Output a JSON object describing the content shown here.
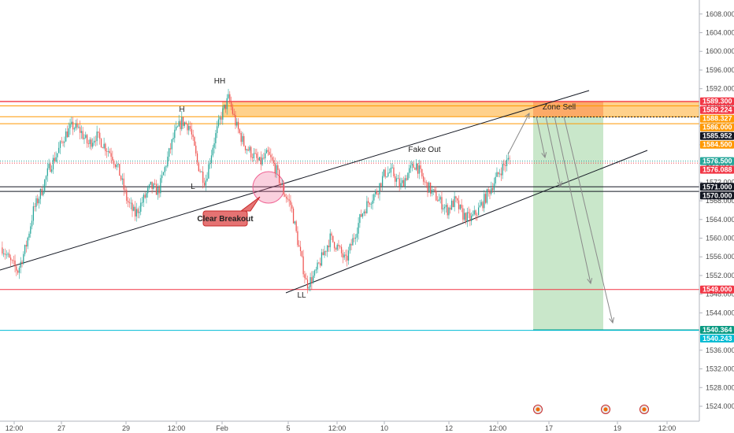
{
  "chart_data": {
    "type": "candlestick",
    "instrument_hint": "Gold spot price",
    "y_axis": {
      "ticks": [
        1608,
        1604,
        1600,
        1596,
        1592,
        1588,
        1584,
        1580,
        1576,
        1572,
        1568,
        1564,
        1560,
        1556,
        1552,
        1548,
        1544,
        1540,
        1536,
        1532,
        1528,
        1524
      ],
      "tick_labels": [
        "1608.000",
        "1604.000",
        "1600.000",
        "1596.000",
        "1592.000",
        "1588.000",
        "1584.000",
        "1580.000",
        "1576.000",
        "1572.000",
        "1568.000",
        "1564.000",
        "1560.000",
        "1556.000",
        "1552.000",
        "1548.000",
        "1544.000",
        "1540.000",
        "1536.000",
        "1532.000",
        "1528.000",
        "1524.000"
      ],
      "range": [
        1520.8,
        1611
      ]
    },
    "x_axis": {
      "tick_labels": [
        "12:00",
        "27",
        "29",
        "12:00",
        "Feb",
        "5",
        "12:00",
        "10",
        "12",
        "12:00",
        "17",
        "19",
        "12:00"
      ]
    },
    "price_levels": [
      {
        "value": 1589.3,
        "label": "1589.300",
        "color": "#f23645"
      },
      {
        "value": 1589.224,
        "label": "1589.224",
        "color": "#f23645"
      },
      {
        "value": 1588.327,
        "label": "1588.327",
        "color": "#ff9800"
      },
      {
        "value": 1586.0,
        "label": "1586.000",
        "color": "#ff9800"
      },
      {
        "value": 1585.952,
        "label": "1585.952",
        "color": "#131722"
      },
      {
        "value": 1584.5,
        "label": "1584.500",
        "color": "#ff9800"
      },
      {
        "value": 1576.5,
        "label": "1576.500",
        "color": "#26a69a"
      },
      {
        "value": 1576.088,
        "label": "1576.088",
        "color": "#f23645"
      },
      {
        "value": 1571.0,
        "label": "1571.000",
        "color": "#131722"
      },
      {
        "value": 1570.0,
        "label": "1570.000",
        "color": "#131722"
      },
      {
        "value": 1549.0,
        "label": "1549.000",
        "color": "#f23645"
      },
      {
        "value": 1540.364,
        "label": "1540.364",
        "color": "#089981"
      },
      {
        "value": 1540.243,
        "label": "1540.243",
        "color": "#00bcd4"
      }
    ],
    "annotations": {
      "hh": "HH",
      "h": "H",
      "l": "L",
      "ll": "LL",
      "fake_out": "Fake Out",
      "zone_sell": "Zone Sell",
      "clear_breakout": "Clear Breakout"
    },
    "sell_zone": {
      "from": 1586.0,
      "to": 1589.3
    },
    "short_position": {
      "entry": 1586.0,
      "stop": 1589.3,
      "target": 1540.364
    },
    "price_path": [
      1558,
      1555,
      1553,
      1558,
      1566,
      1570,
      1575,
      1578,
      1582,
      1584,
      1583,
      1580,
      1582,
      1580,
      1578,
      1574,
      1568,
      1565,
      1568,
      1571,
      1570,
      1576,
      1582,
      1585,
      1584,
      1576,
      1572,
      1580,
      1586,
      1590,
      1584,
      1580,
      1578,
      1576,
      1578,
      1575,
      1570,
      1567,
      1558,
      1550,
      1552,
      1556,
      1560,
      1558,
      1555,
      1560,
      1565,
      1568,
      1570,
      1574,
      1574,
      1571,
      1574,
      1576,
      1572,
      1570,
      1568,
      1566,
      1568,
      1565,
      1564,
      1566,
      1569,
      1572,
      1575,
      1577
    ]
  },
  "colors": {
    "bull": "#26a69a",
    "bear": "#ef5350",
    "sell_zone": "#ff9800",
    "stop_zone": "#f23645",
    "target_zone": "#4caf50",
    "trendline": "#131722",
    "arrow": "#8a8a8a",
    "breakout": "#f06292"
  }
}
